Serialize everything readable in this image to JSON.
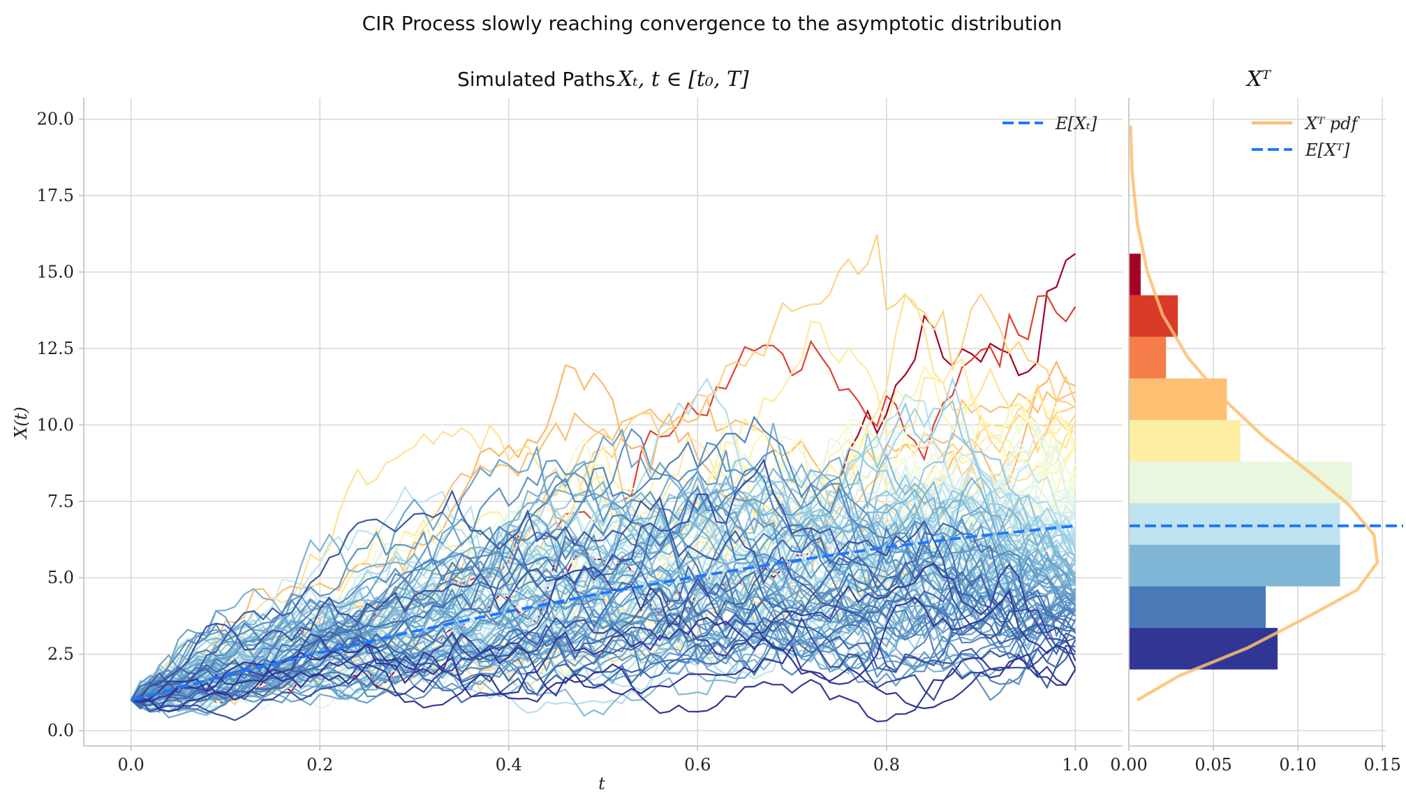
{
  "figure": {
    "suptitle": "CIR Process slowly reaching convergence to the asymptotic distribution"
  },
  "chart_data": [
    {
      "type": "line",
      "title": "Simulated Paths X_t, t ∈ [t_0, T]",
      "title_plain": "Simulated Paths",
      "title_math": "Xₜ, t ∈ [t₀, T]",
      "xlabel": "t",
      "ylabel": "X(t)",
      "xlim": [
        -0.05,
        1.05
      ],
      "ylim": [
        -0.5,
        20.7
      ],
      "xticks": [
        0.0,
        0.2,
        0.4,
        0.6,
        0.8,
        1.0
      ],
      "xtick_labels": [
        "0.0",
        "0.2",
        "0.4",
        "0.6",
        "0.8",
        "1.0"
      ],
      "yticks": [
        0.0,
        2.5,
        5.0,
        7.5,
        10.0,
        12.5,
        15.0,
        17.5,
        20.0
      ],
      "ytick_labels": [
        "0.0",
        "2.5",
        "5.0",
        "7.5",
        "10.0",
        "12.5",
        "15.0",
        "17.5",
        "20.0"
      ],
      "grid": true,
      "legend_position": "top-right",
      "legend": [
        "E[Xₜ]"
      ],
      "initial_value": 1.0,
      "n_paths": 120,
      "colormap": "RdYlBu_r",
      "expected_path": {
        "name": "E[Xₜ]",
        "color": "#1f77ff",
        "style": "dashed",
        "x": [
          0.0,
          0.1,
          0.2,
          0.3,
          0.4,
          0.5,
          0.6,
          0.7,
          0.8,
          0.9,
          1.0
        ],
        "y": [
          1.0,
          1.8,
          2.55,
          3.25,
          3.9,
          4.5,
          5.05,
          5.55,
          6.0,
          6.38,
          6.7
        ]
      }
    },
    {
      "type": "bar",
      "orientation": "horizontal",
      "title": "X_T",
      "title_math": "Xᵀ",
      "xlim": [
        0.0,
        0.152
      ],
      "ylim": [
        -0.5,
        20.7
      ],
      "xticks": [
        0.0,
        0.05,
        0.1,
        0.15
      ],
      "xtick_labels": [
        "0.00",
        "0.05",
        "0.10",
        "0.15"
      ],
      "grid": true,
      "legend_position": "top-right",
      "legend": [
        "Xᵀ pdf",
        "E[Xᵀ]"
      ],
      "bin_edges": [
        2.0,
        3.36,
        4.72,
        6.08,
        7.44,
        8.8,
        10.16,
        11.52,
        12.88,
        14.24,
        15.6
      ],
      "densities": [
        0.088,
        0.081,
        0.125,
        0.125,
        0.132,
        0.066,
        0.058,
        0.022,
        0.029,
        0.007
      ],
      "bar_colors": [
        "#313695",
        "#4a7ab7",
        "#7fb6d6",
        "#bee3ef",
        "#eaf6dd",
        "#fdeea2",
        "#fdbf71",
        "#f67c4a",
        "#d93a27",
        "#a50026"
      ],
      "pdf_curve": {
        "name": "Xᵀ pdf",
        "color": "#fdbf71",
        "x": [
          0.005,
          0.03,
          0.07,
          0.105,
          0.135,
          0.147,
          0.145,
          0.13,
          0.108,
          0.08,
          0.055,
          0.035,
          0.02,
          0.011,
          0.005,
          0.002,
          0.001
        ],
        "y": [
          1.0,
          1.8,
          2.7,
          3.7,
          4.6,
          5.5,
          6.4,
          7.4,
          8.4,
          9.6,
          10.9,
          12.2,
          13.6,
          15.0,
          16.6,
          18.2,
          19.8
        ]
      },
      "expected_value": {
        "name": "E[Xᵀ]",
        "color": "#1f77ff",
        "style": "dashed",
        "value": 6.7
      }
    }
  ]
}
